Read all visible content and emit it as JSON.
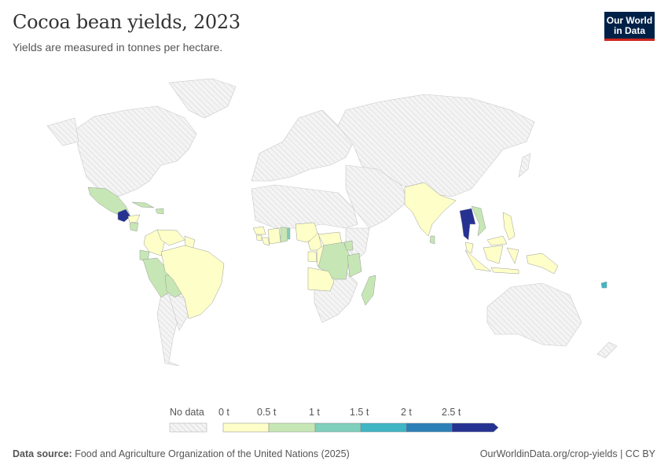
{
  "title": "Cocoa bean yields, 2023",
  "subtitle": "Yields are measured in tonnes per hectare.",
  "logo": {
    "line1": "Our World",
    "line2": "in Data"
  },
  "legend": {
    "no_data_label": "No data",
    "ticks": [
      "0 t",
      "0.5 t",
      "1 t",
      "1.5 t",
      "2 t",
      "2.5 t"
    ],
    "bins": [
      {
        "range": "0–0.5 t",
        "color": "#feffc8"
      },
      {
        "range": "0.5–1 t",
        "color": "#c6e7b5"
      },
      {
        "range": "1–1.5 t",
        "color": "#7ecfbc"
      },
      {
        "range": "1.5–2 t",
        "color": "#40b5c4"
      },
      {
        "range": "2–2.5 t",
        "color": "#2b7fb7"
      },
      {
        "range": ">2.5 t",
        "color": "#253292"
      }
    ],
    "no_data_color": "#e8e8e8"
  },
  "countries": [
    {
      "name": "Mexico",
      "bin": 1
    },
    {
      "name": "Guatemala",
      "bin": 5
    },
    {
      "name": "Honduras",
      "bin": 0
    },
    {
      "name": "Nicaragua",
      "bin": 1
    },
    {
      "name": "Cuba",
      "bin": 1
    },
    {
      "name": "Dominican Republic",
      "bin": 1
    },
    {
      "name": "Colombia",
      "bin": 0
    },
    {
      "name": "Venezuela",
      "bin": 0
    },
    {
      "name": "Guyana",
      "bin": 0
    },
    {
      "name": "Ecuador",
      "bin": 1
    },
    {
      "name": "Peru",
      "bin": 1
    },
    {
      "name": "Bolivia",
      "bin": 1
    },
    {
      "name": "Brazil",
      "bin": 0
    },
    {
      "name": "Guinea",
      "bin": 0
    },
    {
      "name": "Sierra Leone",
      "bin": 0
    },
    {
      "name": "Liberia",
      "bin": 0
    },
    {
      "name": "Côte d'Ivoire",
      "bin": 0
    },
    {
      "name": "Ghana",
      "bin": 1
    },
    {
      "name": "Togo",
      "bin": 2
    },
    {
      "name": "Nigeria",
      "bin": 0
    },
    {
      "name": "Cameroon",
      "bin": 0
    },
    {
      "name": "Gabon",
      "bin": 0
    },
    {
      "name": "Congo",
      "bin": 0
    },
    {
      "name": "Central African Republic",
      "bin": 0
    },
    {
      "name": "DR Congo",
      "bin": 1
    },
    {
      "name": "Uganda",
      "bin": 1
    },
    {
      "name": "Tanzania",
      "bin": 1
    },
    {
      "name": "Angola",
      "bin": 0
    },
    {
      "name": "Madagascar",
      "bin": 1
    },
    {
      "name": "India",
      "bin": 0
    },
    {
      "name": "Sri Lanka",
      "bin": 1
    },
    {
      "name": "Thailand",
      "bin": 5
    },
    {
      "name": "Vietnam",
      "bin": 1
    },
    {
      "name": "Malaysia",
      "bin": 0
    },
    {
      "name": "Indonesia",
      "bin": 0
    },
    {
      "name": "Philippines",
      "bin": 0
    },
    {
      "name": "Papua New Guinea",
      "bin": 0
    },
    {
      "name": "Vanuatu",
      "bin": 3
    }
  ],
  "footer": {
    "source_label": "Data source:",
    "source_text": "Food and Agriculture Organization of the United Nations (2025)",
    "right": "OurWorldinData.org/crop-yields | CC BY"
  }
}
